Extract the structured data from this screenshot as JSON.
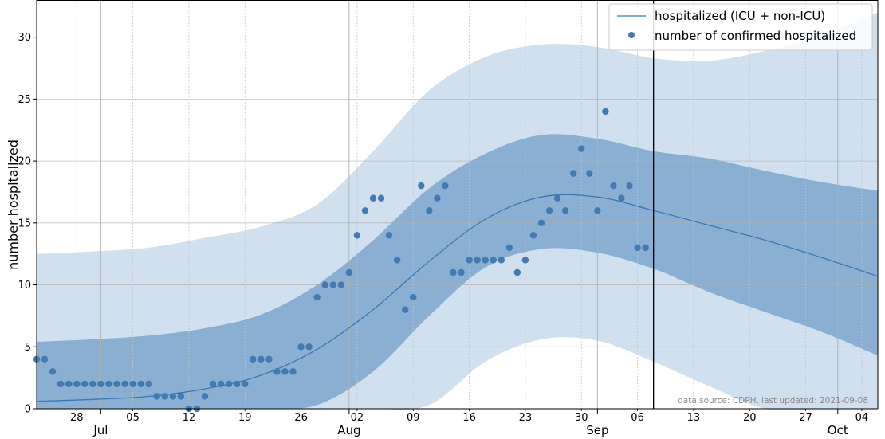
{
  "chart_data": {
    "type": "line",
    "title": "",
    "xlabel": "",
    "ylabel": "number hospitalized",
    "ylim": [
      0,
      33
    ],
    "xlim": [
      "2021-06-23",
      "2021-10-06"
    ],
    "yticks": [
      0,
      5,
      10,
      15,
      20,
      25,
      30
    ],
    "day_ticks": [
      {
        "date": "2021-06-28",
        "label": "28"
      },
      {
        "date": "2021-07-05",
        "label": "05"
      },
      {
        "date": "2021-07-12",
        "label": "12"
      },
      {
        "date": "2021-07-19",
        "label": "19"
      },
      {
        "date": "2021-07-26",
        "label": "26"
      },
      {
        "date": "2021-08-02",
        "label": "02"
      },
      {
        "date": "2021-08-09",
        "label": "09"
      },
      {
        "date": "2021-08-16",
        "label": "16"
      },
      {
        "date": "2021-08-23",
        "label": "23"
      },
      {
        "date": "2021-08-30",
        "label": "30"
      },
      {
        "date": "2021-09-06",
        "label": "06"
      },
      {
        "date": "2021-09-13",
        "label": "13"
      },
      {
        "date": "2021-09-20",
        "label": "20"
      },
      {
        "date": "2021-09-27",
        "label": "27"
      },
      {
        "date": "2021-10-04",
        "label": "04"
      }
    ],
    "month_ticks": [
      {
        "date": "2021-07-01",
        "label": "Jul"
      },
      {
        "date": "2021-08-01",
        "label": "Aug"
      },
      {
        "date": "2021-09-01",
        "label": "Sep"
      },
      {
        "date": "2021-10-01",
        "label": "Oct"
      }
    ],
    "grid": true,
    "legend_position": "top-right",
    "vertical_line_date": "2021-09-08",
    "annotation": "data source: CDPH, last updated: 2021-09-08",
    "colors": {
      "line": "#3a78b4",
      "points": "#4479b1",
      "inner_band": "#8aafd3",
      "outer_band": "#d0e0ee",
      "vline": "#000000"
    },
    "series": [
      {
        "name": "hospitalized (ICU + non-ICU)",
        "kind": "line",
        "x": [
          "2021-06-23",
          "2021-06-30",
          "2021-07-07",
          "2021-07-14",
          "2021-07-21",
          "2021-07-28",
          "2021-08-04",
          "2021-08-11",
          "2021-08-18",
          "2021-08-25",
          "2021-09-01",
          "2021-09-08",
          "2021-09-15",
          "2021-09-22",
          "2021-09-29",
          "2021-10-06"
        ],
        "y": [
          0.6,
          0.75,
          1.0,
          1.6,
          2.7,
          4.8,
          8.0,
          11.9,
          15.3,
          17.1,
          17.1,
          16.0,
          14.8,
          13.6,
          12.2,
          10.7
        ]
      },
      {
        "name": "inner interval",
        "kind": "band",
        "x": [
          "2021-06-23",
          "2021-06-30",
          "2021-07-07",
          "2021-07-14",
          "2021-07-21",
          "2021-07-28",
          "2021-08-04",
          "2021-08-11",
          "2021-08-18",
          "2021-08-25",
          "2021-09-01",
          "2021-09-08",
          "2021-09-15",
          "2021-09-22",
          "2021-09-29",
          "2021-10-06"
        ],
        "lower": [
          0,
          0,
          0,
          0,
          0,
          0.3,
          3.0,
          7.5,
          11.4,
          12.9,
          12.6,
          11.3,
          9.4,
          7.8,
          6.2,
          4.3
        ],
        "upper": [
          5.4,
          5.6,
          5.9,
          6.5,
          7.6,
          10.0,
          13.6,
          17.8,
          20.6,
          22.1,
          21.8,
          20.8,
          20.2,
          19.2,
          18.3,
          17.6
        ]
      },
      {
        "name": "outer interval",
        "kind": "band",
        "x": [
          "2021-06-23",
          "2021-06-30",
          "2021-07-07",
          "2021-07-14",
          "2021-07-21",
          "2021-07-28",
          "2021-08-04",
          "2021-08-11",
          "2021-08-18",
          "2021-08-25",
          "2021-09-01",
          "2021-09-08",
          "2021-09-15",
          "2021-09-22",
          "2021-09-29",
          "2021-10-06"
        ],
        "lower": [
          0,
          0,
          0,
          0,
          0,
          0,
          0,
          0.3,
          3.8,
          5.6,
          5.5,
          3.8,
          1.8,
          0,
          0,
          0
        ],
        "upper": [
          12.5,
          12.7,
          13.0,
          13.8,
          14.7,
          16.5,
          20.8,
          25.7,
          28.4,
          29.4,
          29.2,
          28.3,
          28.1,
          28.9,
          30.2,
          32.0
        ]
      },
      {
        "name": "number of confirmed hospitalized",
        "kind": "scatter",
        "x": [
          "2021-06-23",
          "2021-06-24",
          "2021-06-25",
          "2021-06-26",
          "2021-06-27",
          "2021-06-28",
          "2021-06-29",
          "2021-06-30",
          "2021-07-01",
          "2021-07-02",
          "2021-07-03",
          "2021-07-04",
          "2021-07-05",
          "2021-07-06",
          "2021-07-07",
          "2021-07-08",
          "2021-07-09",
          "2021-07-10",
          "2021-07-11",
          "2021-07-12",
          "2021-07-13",
          "2021-07-14",
          "2021-07-15",
          "2021-07-16",
          "2021-07-17",
          "2021-07-18",
          "2021-07-19",
          "2021-07-20",
          "2021-07-21",
          "2021-07-22",
          "2021-07-23",
          "2021-07-24",
          "2021-07-25",
          "2021-07-26",
          "2021-07-27",
          "2021-07-28",
          "2021-07-29",
          "2021-07-30",
          "2021-07-31",
          "2021-08-01",
          "2021-08-02",
          "2021-08-03",
          "2021-08-04",
          "2021-08-05",
          "2021-08-06",
          "2021-08-07",
          "2021-08-08",
          "2021-08-09",
          "2021-08-10",
          "2021-08-11",
          "2021-08-12",
          "2021-08-13",
          "2021-08-14",
          "2021-08-15",
          "2021-08-16",
          "2021-08-17",
          "2021-08-18",
          "2021-08-19",
          "2021-08-20",
          "2021-08-21",
          "2021-08-22",
          "2021-08-23",
          "2021-08-24",
          "2021-08-25",
          "2021-08-26",
          "2021-08-27",
          "2021-08-28",
          "2021-08-29",
          "2021-08-30",
          "2021-08-31",
          "2021-09-01",
          "2021-09-02",
          "2021-09-03",
          "2021-09-04",
          "2021-09-05",
          "2021-09-06",
          "2021-09-07"
        ],
        "y": [
          4,
          4,
          3,
          2,
          2,
          2,
          2,
          2,
          2,
          2,
          2,
          2,
          2,
          2,
          2,
          1,
          1,
          1,
          1,
          0,
          0,
          1,
          2,
          2,
          2,
          2,
          2,
          4,
          4,
          4,
          3,
          3,
          3,
          5,
          5,
          9,
          10,
          10,
          10,
          11,
          14,
          16,
          17,
          17,
          14,
          12,
          8,
          9,
          18,
          16,
          17,
          18,
          11,
          11,
          12,
          12,
          12,
          12,
          12,
          13,
          11,
          12,
          14,
          15,
          16,
          17,
          16,
          19,
          21,
          19,
          16,
          24,
          18,
          17,
          18,
          13,
          13
        ]
      }
    ]
  }
}
